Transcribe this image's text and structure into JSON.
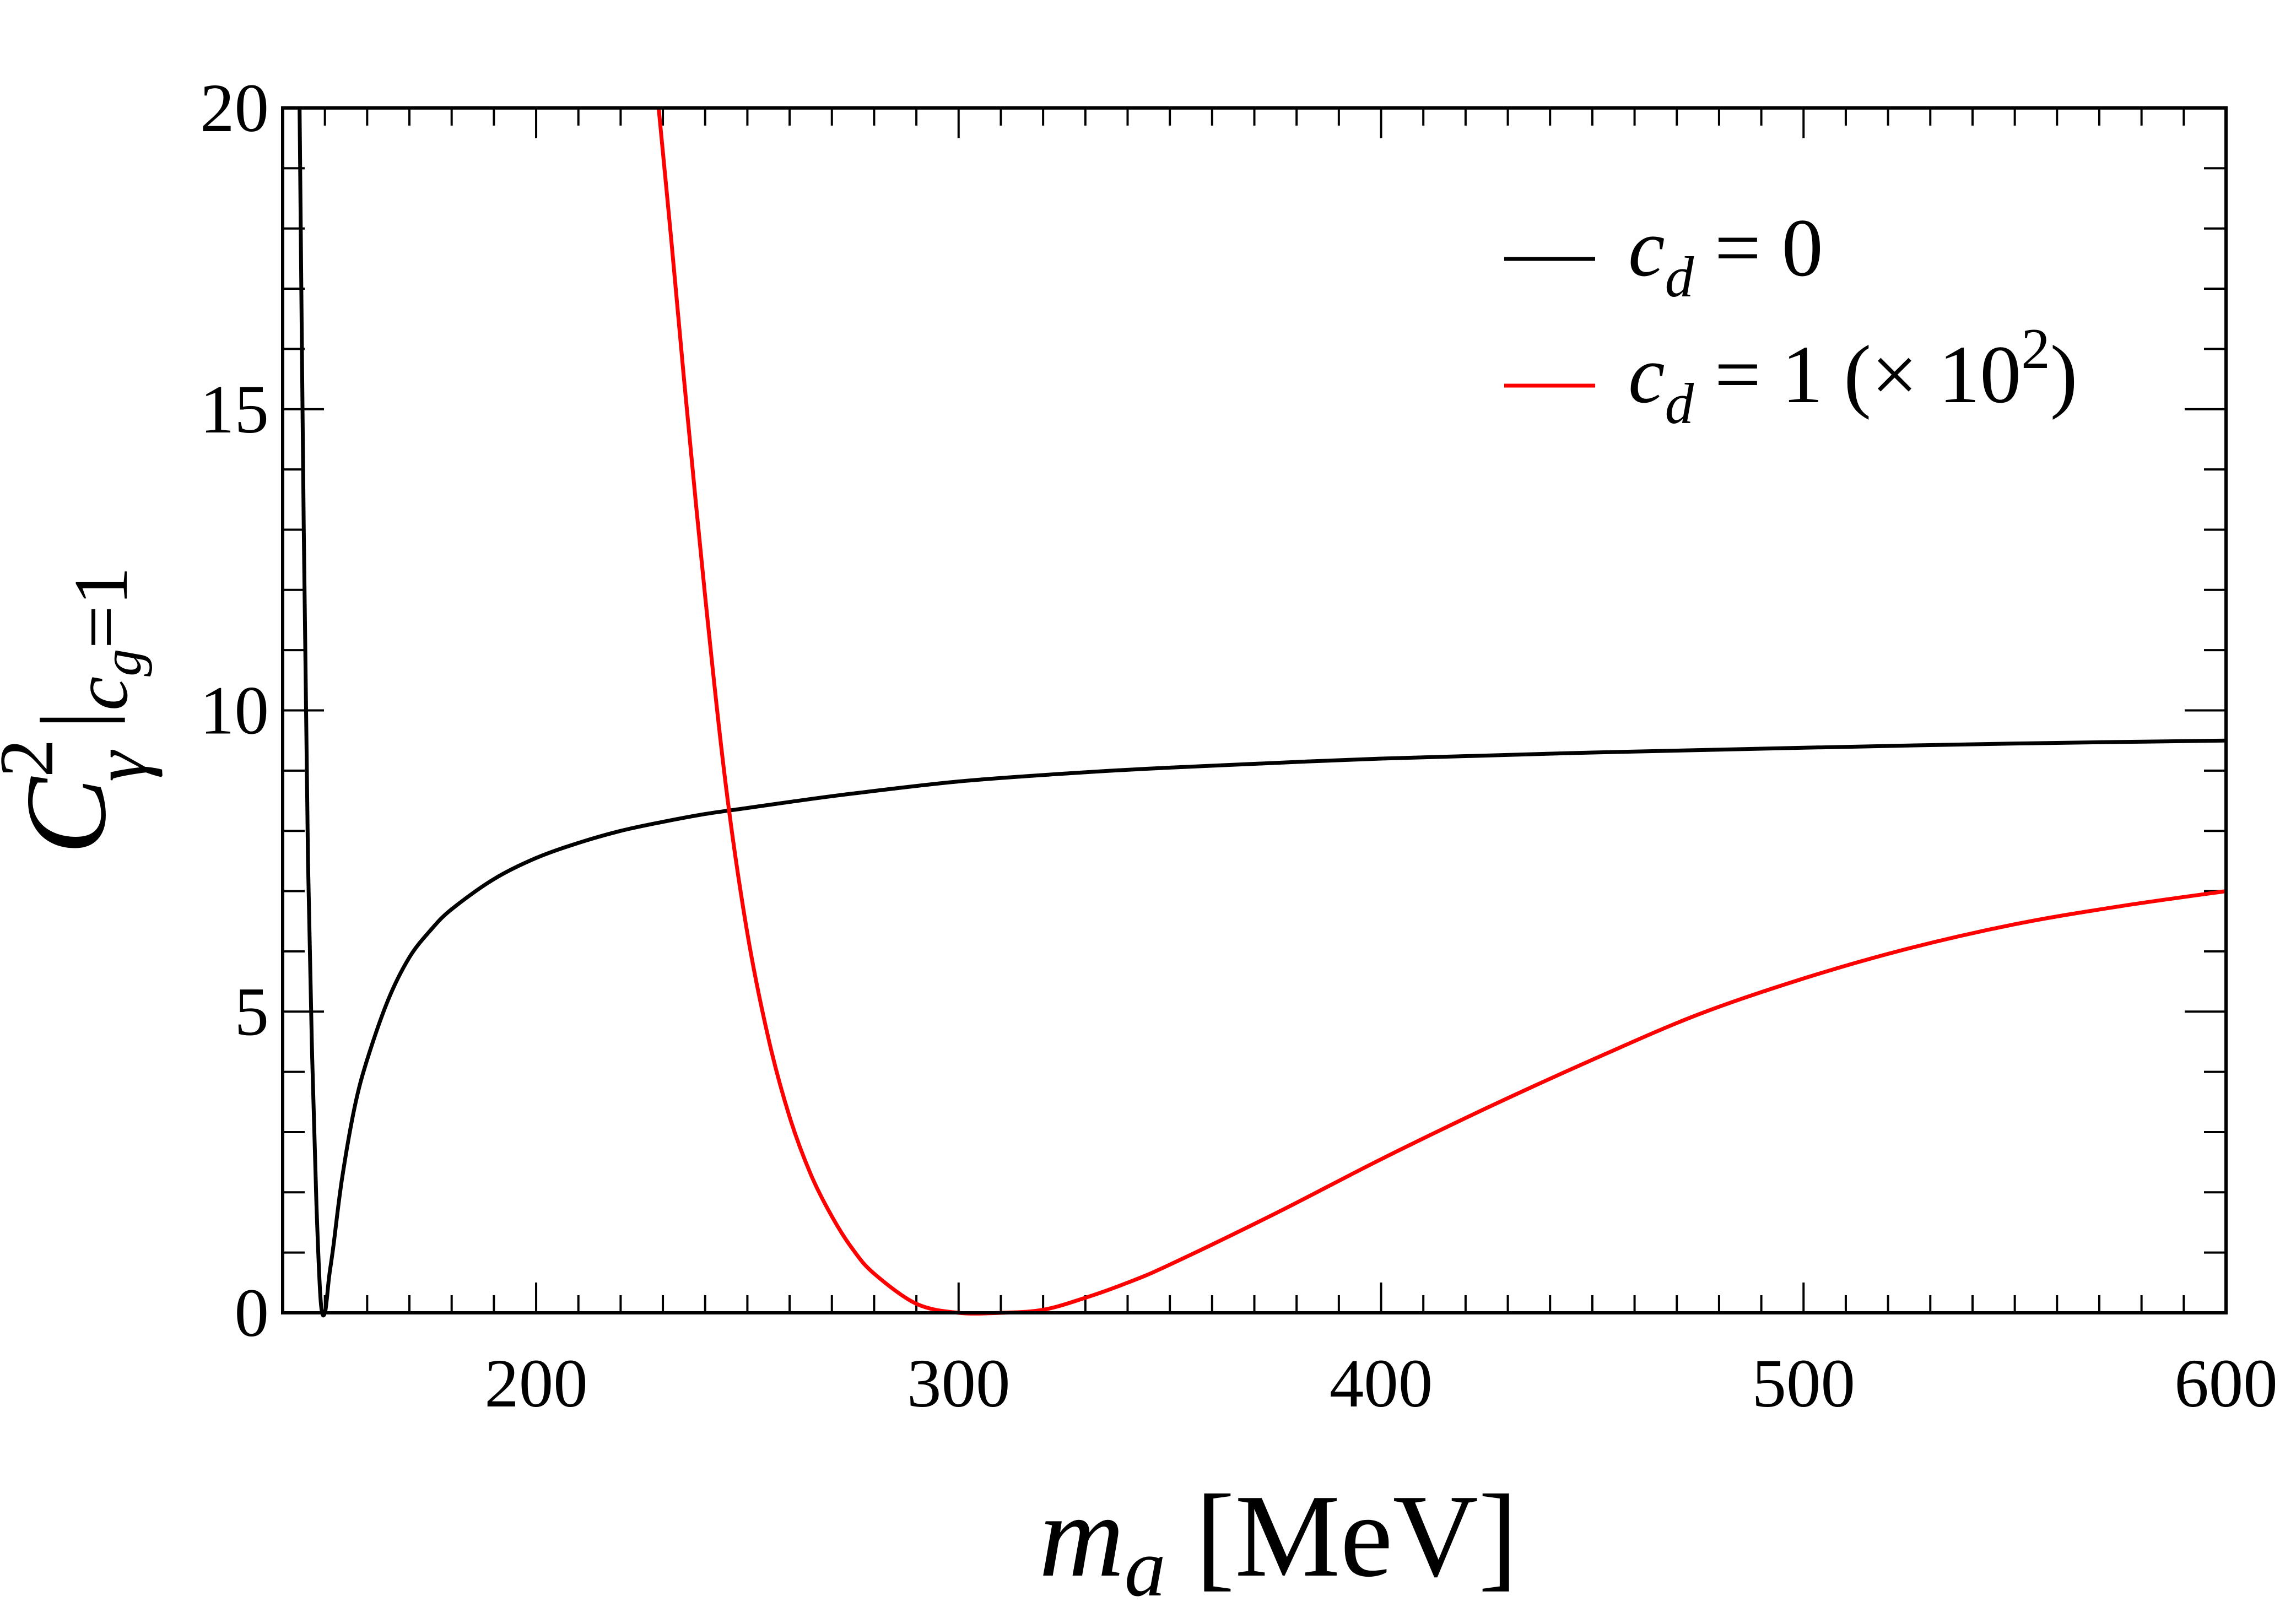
{
  "chart_data": {
    "type": "line",
    "xlabel": {
      "italic": "m",
      "sub": "a",
      "unit": "[MeV]"
    },
    "ylabel": {
      "base": "C",
      "sup": "2",
      "sub": "γ",
      "cond_var": "c",
      "cond_sub": "g",
      "cond_val": "=1"
    },
    "xlim": [
      140,
      600
    ],
    "ylim": [
      0,
      20
    ],
    "x_ticks": [
      200,
      300,
      400,
      500,
      600
    ],
    "x_tick_labels": [
      "200",
      "300",
      "400",
      "500",
      "600"
    ],
    "x_minor_step": 10,
    "y_ticks": [
      0,
      5,
      10,
      15,
      20
    ],
    "y_tick_labels": [
      "0",
      "5",
      "10",
      "15",
      "20"
    ],
    "y_minor_step": 1,
    "legend": {
      "position": "top-right",
      "entries": [
        {
          "var": "c",
          "sub": "d",
          "rest": " = 0",
          "color": "#000000"
        },
        {
          "var": "c",
          "sub": "d",
          "rest": " = 1 (× 10",
          "sup": "2",
          "tail": ")",
          "color": "#ff0000"
        }
      ]
    },
    "series": [
      {
        "name": "cd = 0",
        "color": "#000000",
        "x": [
          144,
          145,
          146,
          147,
          148,
          149,
          150,
          151,
          152,
          154,
          157,
          160,
          165,
          170,
          175,
          180,
          190,
          200,
          210,
          220,
          230,
          240,
          250,
          260,
          275,
          300,
          325,
          350,
          400,
          450,
          500,
          550,
          600
        ],
        "y": [
          20,
          13,
          7.5,
          4.2,
          1.8,
          0.2,
          0,
          0.6,
          1.1,
          2.2,
          3.4,
          4.2,
          5.2,
          5.9,
          6.35,
          6.7,
          7.2,
          7.55,
          7.8,
          8.0,
          8.15,
          8.28,
          8.38,
          8.48,
          8.62,
          8.82,
          8.95,
          9.05,
          9.2,
          9.3,
          9.38,
          9.45,
          9.5
        ]
      },
      {
        "name": "cd = 1 (×10^2)",
        "color": "#ff0000",
        "x": [
          229,
          232,
          235,
          240,
          245,
          250,
          255,
          260,
          265,
          270,
          275,
          280,
          290,
          300,
          310,
          320,
          330,
          340,
          350,
          375,
          400,
          425,
          450,
          475,
          500,
          525,
          550,
          575,
          600
        ],
        "y": [
          20,
          17.8,
          15.5,
          11.9,
          8.7,
          6.3,
          4.55,
          3.25,
          2.3,
          1.6,
          1.05,
          0.65,
          0.15,
          0,
          0,
          0.05,
          0.25,
          0.5,
          0.8,
          1.65,
          2.55,
          3.4,
          4.2,
          4.95,
          5.55,
          6.05,
          6.45,
          6.75,
          7.0
        ]
      }
    ]
  }
}
